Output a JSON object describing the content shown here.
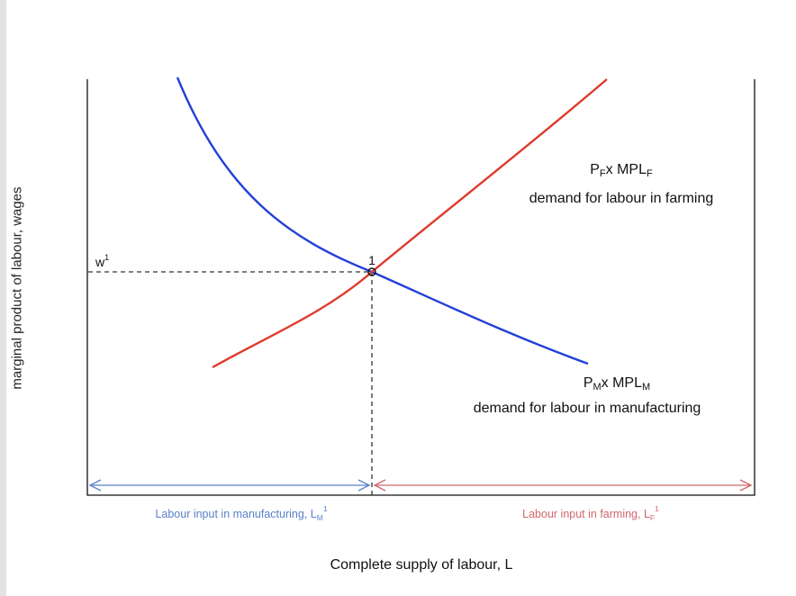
{
  "axes": {
    "ylabel": "marginal product of labour, wages",
    "xlabel": "Complete supply of labour, L"
  },
  "wage": {
    "label": "w",
    "sup": "1"
  },
  "equilibrium": {
    "label": "1"
  },
  "farming_curve": {
    "formula_P": "P",
    "formula_P_sub": "F",
    "formula_mid": "x MPL",
    "formula_MPL_sub": "F",
    "caption": "demand for labour in farming",
    "color": "#e03a2c"
  },
  "manufacturing_curve": {
    "formula_P": "P",
    "formula_P_sub": "M",
    "formula_mid": "x MPL",
    "formula_MPL_sub": "M",
    "caption": "demand for labour in manufacturing",
    "color": "#2340d8"
  },
  "labour_split": {
    "manufacturing": {
      "text": "Labour input in manufacturing, L",
      "sub": "M",
      "sup": "1",
      "color": "#5b80c8"
    },
    "farming": {
      "text": "Labour input in farming, L",
      "sub": "F",
      "sup": "1",
      "color": "#d0666b"
    }
  }
}
